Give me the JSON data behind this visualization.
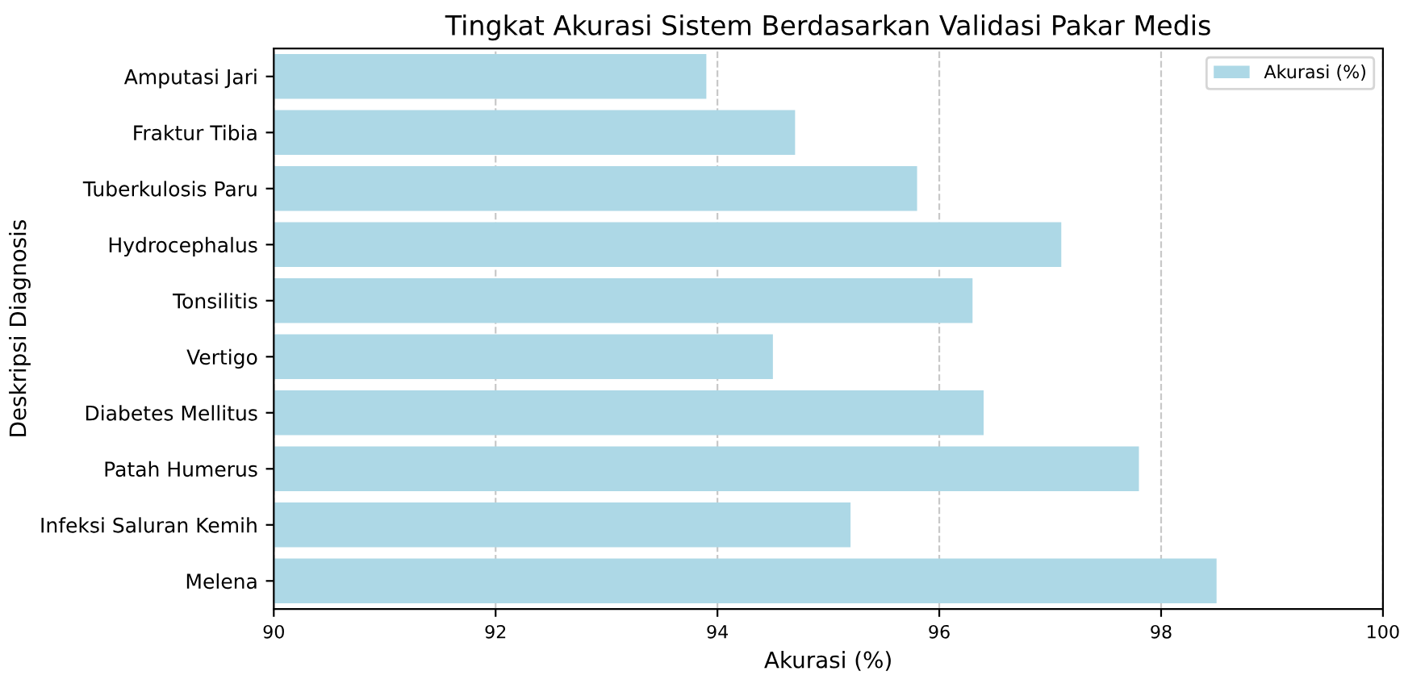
{
  "chart_data": {
    "type": "bar",
    "orientation": "horizontal",
    "title": "Tingkat Akurasi Sistem Berdasarkan Validasi Pakar Medis",
    "xlabel": "Akurasi (%)",
    "ylabel": "Deskripsi Diagnosis",
    "categories": [
      "Amputasi Jari",
      "Fraktur Tibia",
      "Tuberkulosis Paru",
      "Hydrocephalus",
      "Tonsilitis",
      "Vertigo",
      "Diabetes Mellitus",
      "Patah Humerus",
      "Infeksi Saluran Kemih",
      "Melena"
    ],
    "series": [
      {
        "name": "Akurasi (%)",
        "color": "#add8e6",
        "values": [
          93.9,
          94.7,
          95.8,
          97.1,
          96.3,
          94.5,
          96.4,
          97.8,
          95.2,
          98.5
        ]
      }
    ],
    "xlim": [
      90,
      100
    ],
    "xticks": [
      90,
      92,
      94,
      96,
      98,
      100
    ],
    "grid": "x",
    "line_style": "dashed",
    "legend": "top right"
  }
}
